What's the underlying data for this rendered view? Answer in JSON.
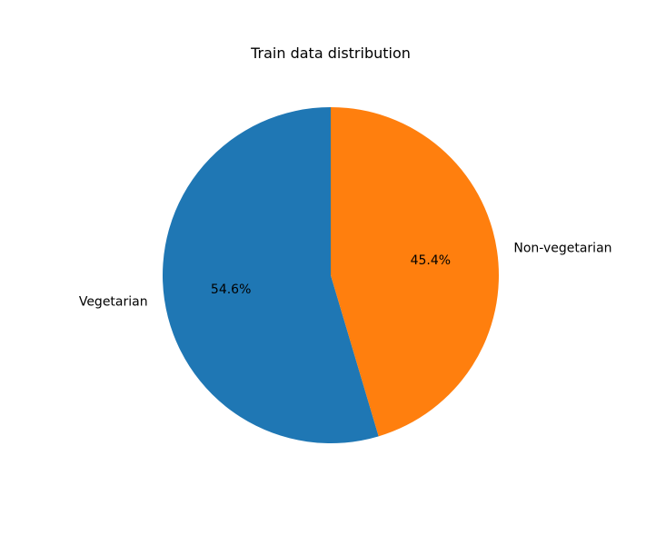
{
  "chart_data": {
    "type": "pie",
    "title": "Train data distribution",
    "slices": [
      {
        "label": "Vegetarian",
        "value": 54.6,
        "pct_label": "54.6%",
        "color": "#1f77b4"
      },
      {
        "label": "Non-vegetarian",
        "value": 45.4,
        "pct_label": "45.4%",
        "color": "#ff7f0e"
      }
    ],
    "start_angle": 90,
    "direction": "counterclockwise",
    "legend": "none"
  }
}
